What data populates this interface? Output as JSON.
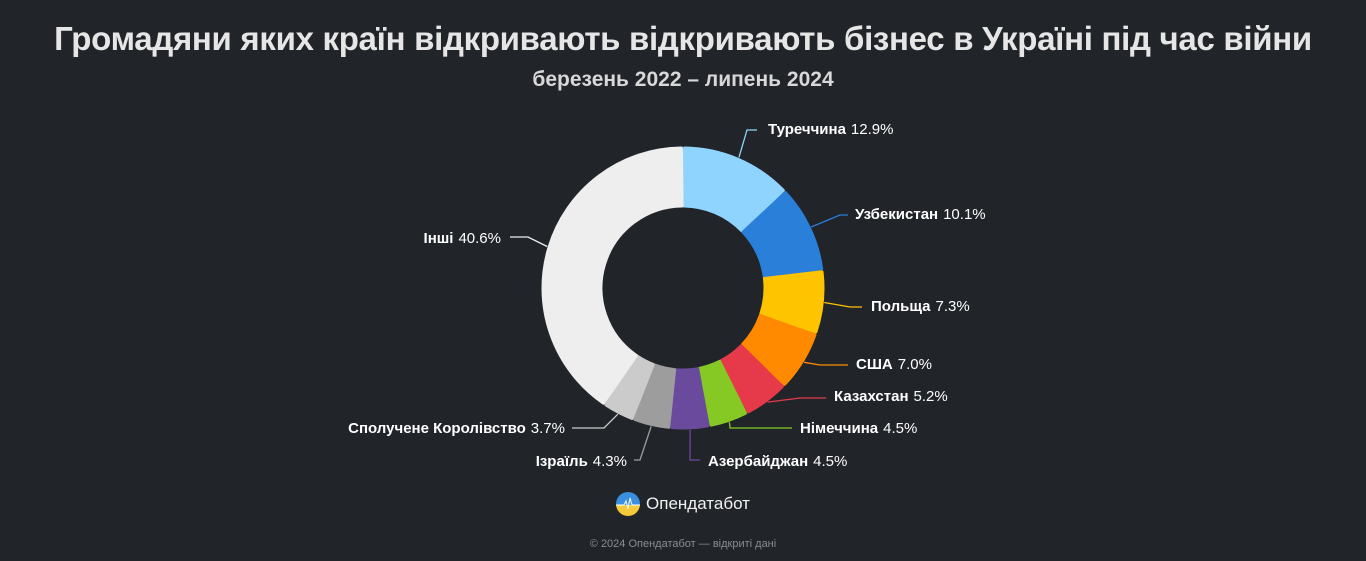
{
  "header": {
    "title": "Громадяни яких країн відкривають відкривають бізнес в Україні під час війни",
    "subtitle": "березень 2022 – липень 2024"
  },
  "chart_data": {
    "type": "pie",
    "variant": "donut",
    "title": "Громадяни яких країн відкривають відкривають бізнес в Україні під час війни",
    "subtitle": "березень 2022 – липень 2024",
    "unit": "%",
    "start_angle": "12 o'clock, clockwise",
    "categories": [
      "Туреччина",
      "Узбекистан",
      "Польща",
      "США",
      "Казахстан",
      "Німеччина",
      "Азербайджан",
      "Ізраїль",
      "Сполучене Королівство",
      "Інші"
    ],
    "values": [
      12.9,
      10.1,
      7.3,
      7.0,
      5.2,
      4.5,
      4.5,
      4.3,
      3.7,
      40.6
    ],
    "colors": [
      "#8fd4fe",
      "#2a7fd8",
      "#ffc400",
      "#ff8a00",
      "#e63a4a",
      "#86c924",
      "#6a4a9c",
      "#9d9d9d",
      "#cbcbcb",
      "#eeeeee"
    ],
    "labels": [
      {
        "name": "Туреччина",
        "value": "12.9%"
      },
      {
        "name": "Узбекистан",
        "value": "10.1%"
      },
      {
        "name": "Польща",
        "value": "7.3%"
      },
      {
        "name": "США",
        "value": "7.0%"
      },
      {
        "name": "Казахстан",
        "value": "5.2%"
      },
      {
        "name": "Німеччина",
        "value": "4.5%"
      },
      {
        "name": "Азербайджан",
        "value": "4.5%"
      },
      {
        "name": "Ізраїль",
        "value": "4.3%"
      },
      {
        "name": "Сполучене Королівство",
        "value": "3.7%"
      },
      {
        "name": "Інші",
        "value": "40.6%"
      }
    ],
    "legend": "none (direct labels with leader lines)"
  },
  "brand": {
    "icon": "opendatabot-logo-icon",
    "name": "Опендатабот"
  },
  "footer": {
    "text": "© 2024 Опендатабот — відкриті дані"
  },
  "colors": {
    "background": "#212429",
    "text": "#ffffff"
  }
}
